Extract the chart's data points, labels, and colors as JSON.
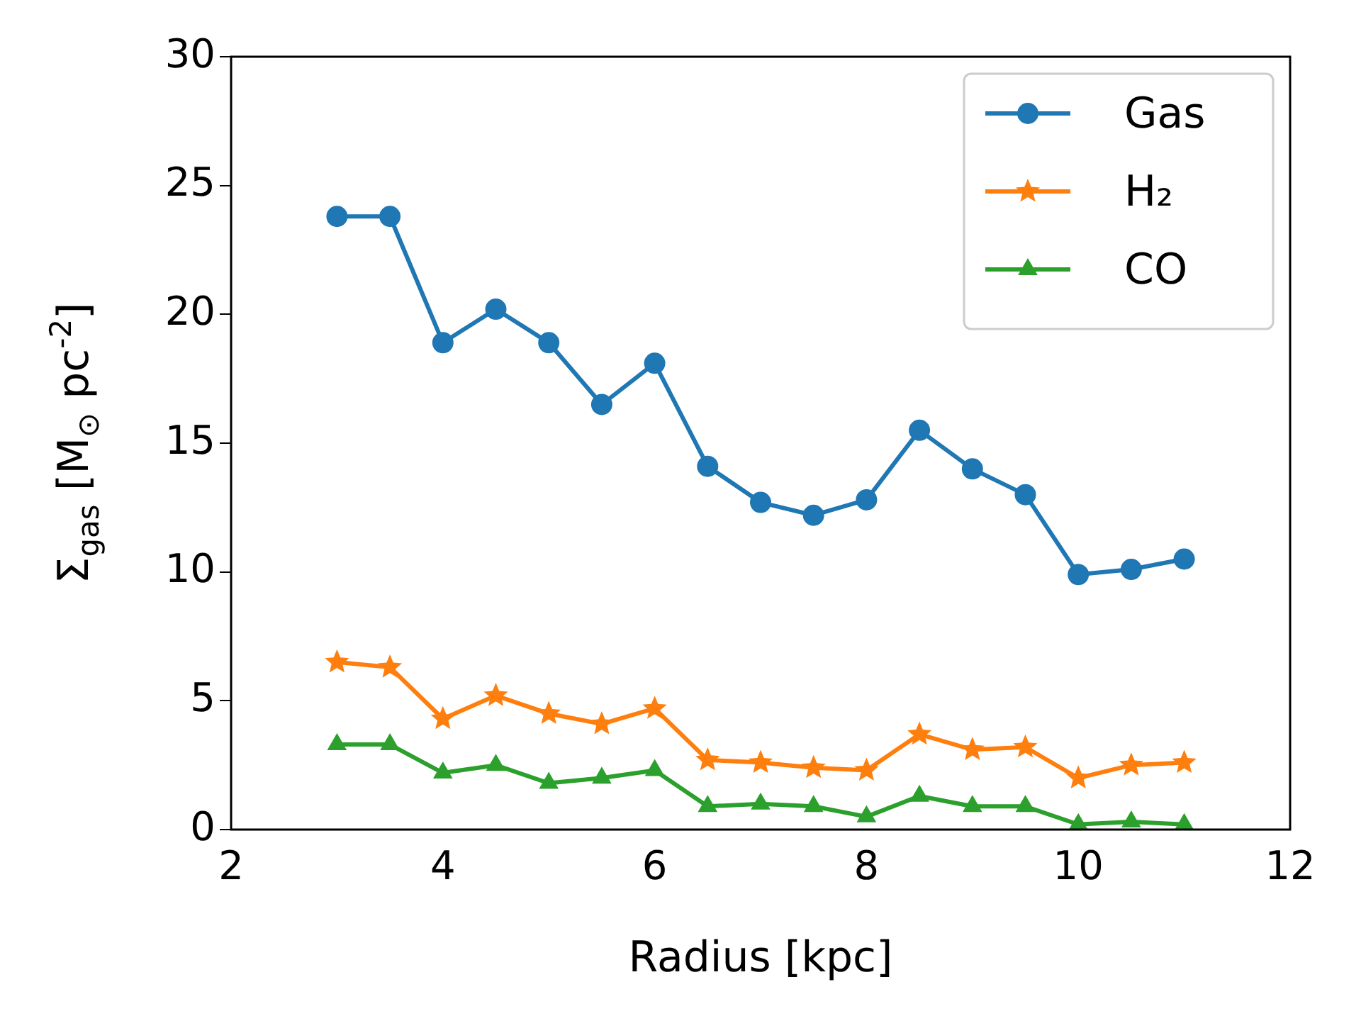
{
  "chart_data": {
    "type": "line",
    "xlabel": "Radius [kpc]",
    "ylabel": "Σ$_{gas}$ [M$_{⊙}$ pc$^{-2}$]",
    "x": [
      3,
      3.5,
      4,
      4.5,
      5,
      5.5,
      6,
      6.5,
      7,
      7.5,
      8,
      8.5,
      9,
      9.5,
      10,
      10.5,
      11
    ],
    "series": [
      {
        "name": "Gas",
        "color": "#1f77b4",
        "marker": "circle",
        "values": [
          23.8,
          23.8,
          18.9,
          20.2,
          18.9,
          16.5,
          18.1,
          14.1,
          12.7,
          12.2,
          12.8,
          15.5,
          14.0,
          13.0,
          9.9,
          10.1,
          10.5
        ]
      },
      {
        "name": "H₂",
        "color": "#ff7f0e",
        "marker": "star",
        "values": [
          6.5,
          6.3,
          4.3,
          5.2,
          4.5,
          4.1,
          4.7,
          2.7,
          2.6,
          2.4,
          2.3,
          3.7,
          3.1,
          3.2,
          2.0,
          2.5,
          2.6
        ]
      },
      {
        "name": "CO",
        "color": "#2ca02c",
        "marker": "triangle",
        "values": [
          3.3,
          3.3,
          2.2,
          2.5,
          1.8,
          2.0,
          2.3,
          0.9,
          1.0,
          0.9,
          0.5,
          1.3,
          0.9,
          0.9,
          0.2,
          0.3,
          0.2
        ]
      }
    ],
    "xlim": [
      2,
      12
    ],
    "xticks": [
      2,
      4,
      6,
      8,
      10,
      12
    ],
    "ylim": [
      0,
      30
    ],
    "yticks": [
      0,
      5,
      10,
      15,
      20,
      25,
      30
    ],
    "grid": false,
    "legend": "top right",
    "line_style": "solid"
  }
}
